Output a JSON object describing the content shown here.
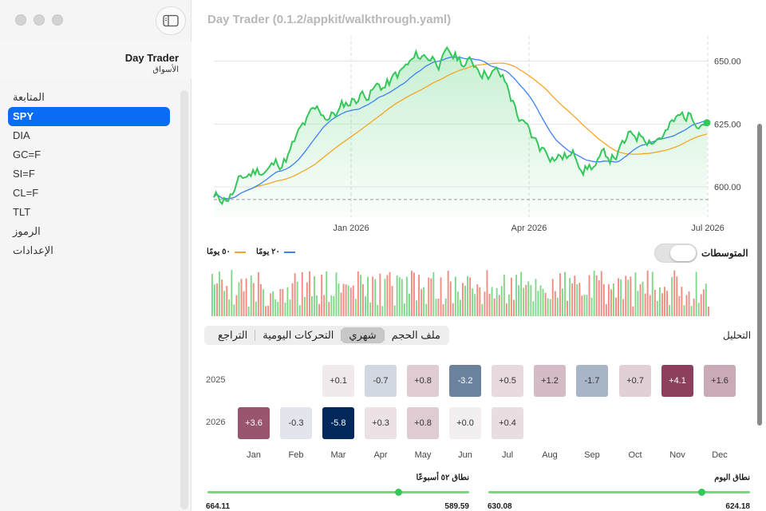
{
  "window": {
    "title": "Day Trader (0.1.2/appkit/walkthrough.yaml)"
  },
  "sidebar": {
    "title": "Day Trader",
    "subtitle": "الأسواق",
    "items": [
      {
        "label": "المتابعة",
        "active": false
      },
      {
        "label": "SPY",
        "active": true
      },
      {
        "label": "DIA",
        "active": false
      },
      {
        "label": "GC=F",
        "active": false
      },
      {
        "label": "SI=F",
        "active": false
      },
      {
        "label": "CL=F",
        "active": false
      },
      {
        "label": "TLT",
        "active": false
      },
      {
        "label": "الرموز",
        "active": false
      },
      {
        "label": "الإعدادات",
        "active": false
      }
    ]
  },
  "chart": {
    "x_ticks": [
      "Jan 2026",
      "Apr 2026",
      "Jul 2026"
    ],
    "y_ticks": [
      "650.00",
      "625.00",
      "600.00"
    ],
    "reference_line": 595,
    "colors": {
      "price": "#34c759",
      "ma20": "#3b82f6",
      "ma50": "#f5a623",
      "volume_up": "#7fd88a",
      "volume_down": "#f28b82"
    }
  },
  "chart_data": {
    "type": "line",
    "x": [
      "2025-10",
      "2025-11",
      "2025-12",
      "2026-01",
      "2026-02",
      "2026-03",
      "2026-04",
      "2026-05",
      "2026-06",
      "2026-07"
    ],
    "series": [
      {
        "name": "price",
        "values": [
          595,
          608,
          628,
          640,
          652,
          648,
          615,
          610,
          622,
          630
        ]
      },
      {
        "name": "٢٠ يومًا",
        "values": [
          596,
          604,
          620,
          636,
          648,
          650,
          626,
          614,
          618,
          626
        ]
      },
      {
        "name": "٥٠ يومًا",
        "values": [
          596,
          600,
          612,
          628,
          642,
          649,
          635,
          620,
          618,
          625
        ]
      }
    ],
    "ylim": [
      588,
      660
    ]
  },
  "legend": {
    "ma20": "٢٠ يومًا",
    "ma50": "٥٠ يومًا"
  },
  "averages": {
    "label": "المتوسطات",
    "enabled": false
  },
  "analysis": {
    "label": "التحليل",
    "tabs": [
      {
        "label": "ملف الحجم",
        "selected": false
      },
      {
        "label": "شهري",
        "selected": true
      },
      {
        "label": "التحركات اليومية",
        "selected": false
      },
      {
        "label": "التراجع",
        "selected": false
      }
    ]
  },
  "monthly": {
    "months": [
      "Jan",
      "Feb",
      "Mar",
      "Apr",
      "May",
      "Jun",
      "Jul",
      "Aug",
      "Sep",
      "Oct",
      "Nov",
      "Dec"
    ],
    "years": [
      {
        "year": "2025",
        "values": [
          null,
          null,
          null,
          "+0.1",
          "-0.7",
          "+0.8",
          "-3.2",
          "+0.5",
          "+1.2",
          "-1.7",
          "+0.7",
          "+4.1",
          "+1.6"
        ]
      },
      {
        "year": "2026",
        "values": [
          "+3.6",
          "-0.3",
          "-5.8",
          "+0.3",
          "+0.8",
          "+0.0",
          "+0.4"
        ]
      }
    ]
  },
  "ranges": {
    "week52": {
      "label": "نطاق ٥٢ أسبوعًا",
      "low": "589.59",
      "high": "664.11",
      "fraction": 0.27
    },
    "day": {
      "label": "نطاق اليوم",
      "low": "624.18",
      "high": "630.08",
      "fraction": 0.02
    }
  }
}
